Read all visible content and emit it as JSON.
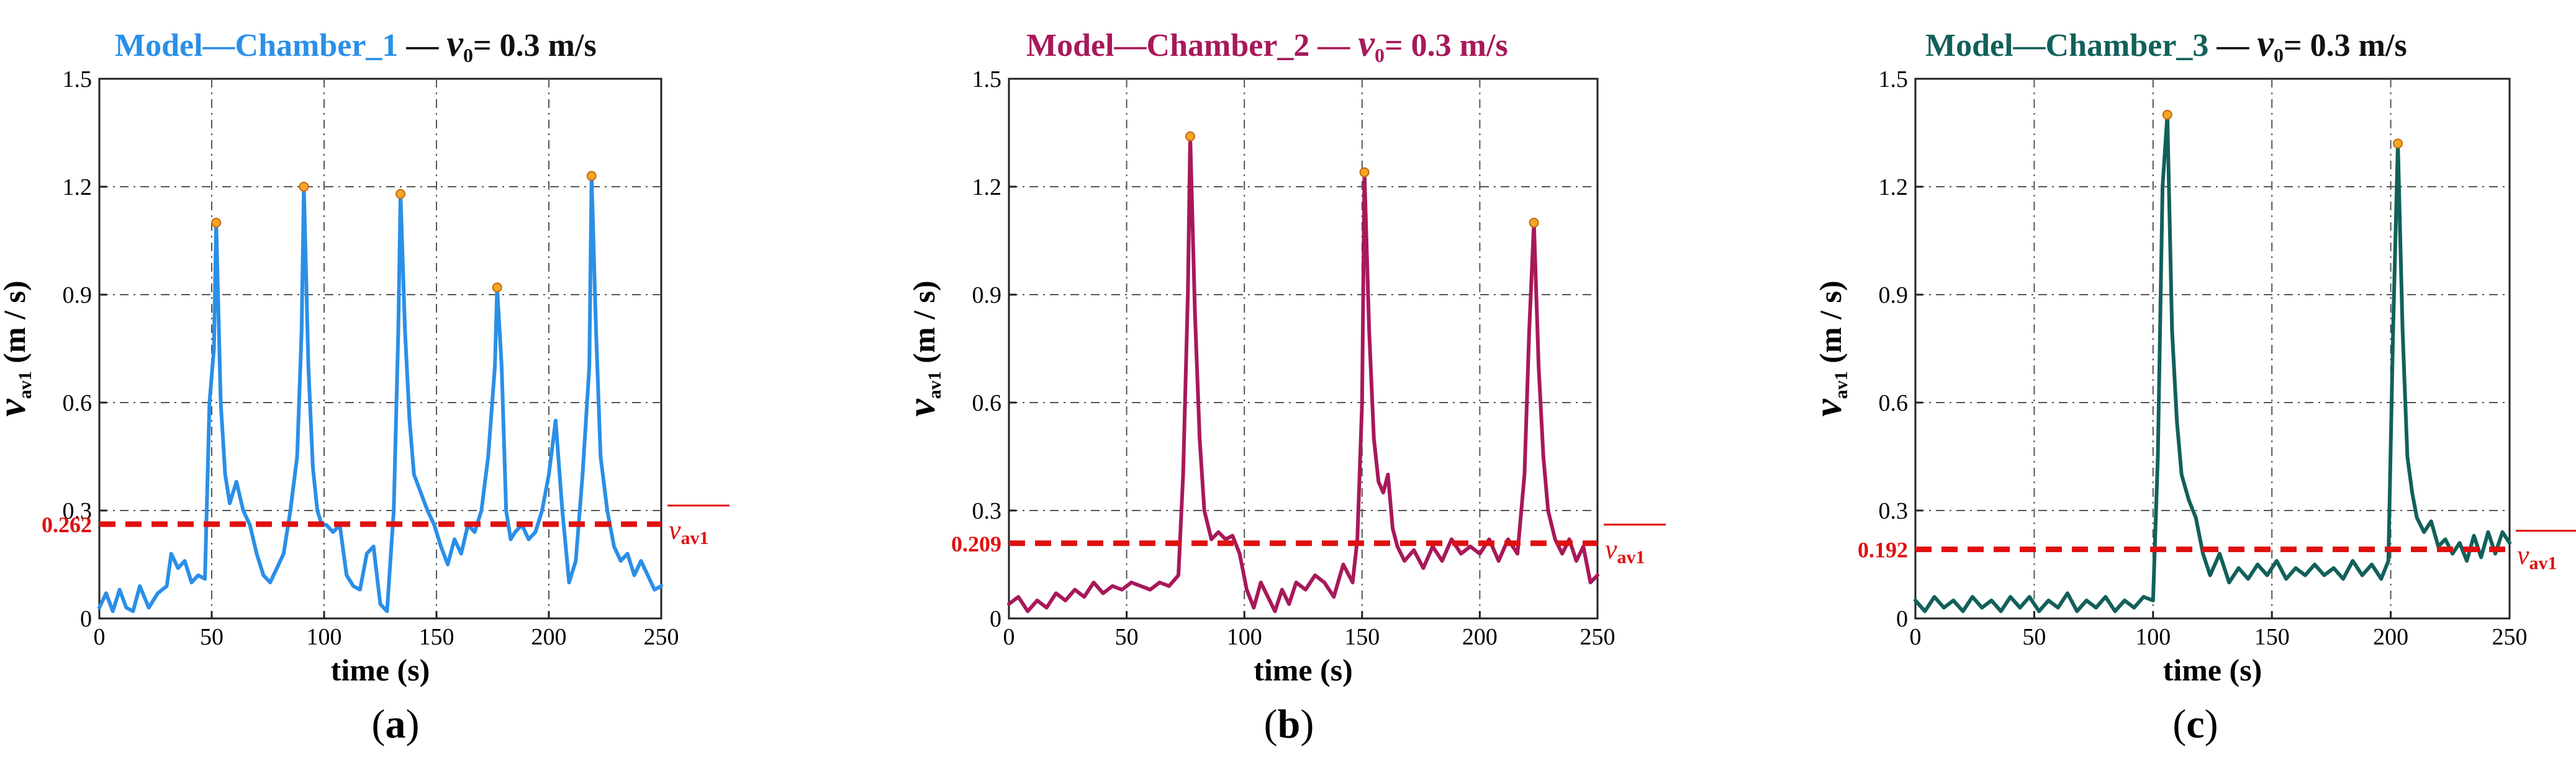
{
  "chart_data": [
    {
      "type": "line",
      "panel_label": "a",
      "title_model": "Model—Chamber_1",
      "title_sep": "—",
      "title_v": "v",
      "title_sub": "0",
      "title_value": "= 0.3 m/s",
      "color": "#2a8fe8",
      "xlabel": "time (s)",
      "ylabel": "v",
      "ylabel_sub": "av1",
      "ylabel_unit": "(m / s)",
      "xlim": [
        0,
        250
      ],
      "ylim": [
        0,
        1.5
      ],
      "x_ticks": [
        "0",
        "50",
        "100",
        "150",
        "200",
        "250"
      ],
      "y_ticks": [
        "0",
        "0.3",
        "0.6",
        "0.9",
        "1.2",
        "1.5"
      ],
      "average_value": "0.262",
      "average": 0.262,
      "average_label": "v",
      "average_label_sub": "av1",
      "peaks": [
        [
          52,
          1.1
        ],
        [
          91,
          1.2
        ],
        [
          134,
          1.18
        ],
        [
          177,
          0.92
        ],
        [
          219,
          1.23
        ]
      ],
      "x": [
        0,
        3,
        6,
        9,
        12,
        15,
        18,
        22,
        26,
        30,
        32,
        35,
        38,
        41,
        44,
        47,
        49,
        51,
        52,
        54,
        56,
        58,
        61,
        64,
        67,
        70,
        73,
        76,
        79,
        82,
        85,
        88,
        90,
        91,
        93,
        95,
        97,
        99,
        101,
        104,
        107,
        110,
        113,
        116,
        119,
        122,
        125,
        128,
        131,
        133,
        134,
        136,
        138,
        140,
        143,
        146,
        149,
        152,
        155,
        158,
        161,
        164,
        167,
        170,
        173,
        176,
        177,
        179,
        181,
        183,
        185,
        188,
        191,
        194,
        197,
        200,
        203,
        206,
        209,
        212,
        215,
        218,
        219,
        221,
        223,
        226,
        229,
        232,
        235,
        238,
        241,
        244,
        247,
        250
      ],
      "y": [
        0.03,
        0.07,
        0.02,
        0.08,
        0.03,
        0.02,
        0.09,
        0.03,
        0.07,
        0.09,
        0.18,
        0.14,
        0.16,
        0.1,
        0.12,
        0.11,
        0.6,
        0.75,
        1.1,
        0.6,
        0.4,
        0.32,
        0.38,
        0.3,
        0.26,
        0.18,
        0.12,
        0.1,
        0.14,
        0.18,
        0.3,
        0.45,
        0.8,
        1.2,
        0.7,
        0.42,
        0.3,
        0.26,
        0.26,
        0.24,
        0.26,
        0.12,
        0.09,
        0.08,
        0.18,
        0.2,
        0.04,
        0.02,
        0.3,
        0.8,
        1.18,
        0.8,
        0.55,
        0.4,
        0.35,
        0.3,
        0.26,
        0.2,
        0.15,
        0.22,
        0.18,
        0.26,
        0.24,
        0.3,
        0.45,
        0.7,
        0.92,
        0.7,
        0.3,
        0.22,
        0.24,
        0.26,
        0.22,
        0.24,
        0.3,
        0.4,
        0.55,
        0.3,
        0.1,
        0.16,
        0.4,
        0.7,
        1.23,
        0.8,
        0.45,
        0.3,
        0.2,
        0.16,
        0.18,
        0.12,
        0.16,
        0.12,
        0.08,
        0.09
      ]
    },
    {
      "type": "line",
      "panel_label": "b",
      "title_model": "Model—Chamber_2",
      "title_sep": "—",
      "title_v": "v",
      "title_sub": "0",
      "title_value": "= 0.3 m/s",
      "color": "#a8185a",
      "xlabel": "time (s)",
      "ylabel": "v",
      "ylabel_sub": "av1",
      "ylabel_unit": "(m / s)",
      "xlim": [
        0,
        250
      ],
      "ylim": [
        0,
        1.5
      ],
      "x_ticks": [
        "0",
        "50",
        "100",
        "150",
        "200",
        "250"
      ],
      "y_ticks": [
        "0",
        "0.3",
        "0.6",
        "0.9",
        "1.2",
        "1.5"
      ],
      "average_value": "0.209",
      "average": 0.209,
      "average_label": "v",
      "average_label_sub": "av1",
      "peaks": [
        [
          77,
          1.34
        ],
        [
          151,
          1.24
        ],
        [
          223,
          1.1
        ]
      ],
      "x": [
        0,
        4,
        8,
        12,
        16,
        20,
        24,
        28,
        32,
        36,
        40,
        44,
        48,
        52,
        56,
        60,
        64,
        68,
        72,
        74,
        76,
        77,
        79,
        81,
        83,
        86,
        89,
        92,
        95,
        98,
        101,
        104,
        107,
        110,
        113,
        116,
        119,
        122,
        126,
        130,
        134,
        138,
        142,
        146,
        148,
        150,
        151,
        153,
        155,
        157,
        159,
        161,
        163,
        165,
        168,
        172,
        176,
        180,
        184,
        188,
        192,
        196,
        200,
        204,
        208,
        212,
        216,
        219,
        221,
        223,
        225,
        227,
        229,
        232,
        235,
        238,
        241,
        244,
        247,
        250
      ],
      "y": [
        0.04,
        0.06,
        0.02,
        0.05,
        0.03,
        0.07,
        0.05,
        0.08,
        0.06,
        0.1,
        0.07,
        0.09,
        0.08,
        0.1,
        0.09,
        0.08,
        0.1,
        0.09,
        0.12,
        0.4,
        0.9,
        1.34,
        0.85,
        0.5,
        0.3,
        0.22,
        0.24,
        0.22,
        0.23,
        0.18,
        0.08,
        0.03,
        0.1,
        0.06,
        0.02,
        0.08,
        0.04,
        0.1,
        0.08,
        0.12,
        0.1,
        0.06,
        0.15,
        0.1,
        0.22,
        0.6,
        1.24,
        0.8,
        0.5,
        0.38,
        0.35,
        0.4,
        0.25,
        0.2,
        0.16,
        0.19,
        0.14,
        0.2,
        0.16,
        0.22,
        0.18,
        0.2,
        0.18,
        0.22,
        0.16,
        0.22,
        0.18,
        0.4,
        0.8,
        1.1,
        0.7,
        0.45,
        0.3,
        0.22,
        0.18,
        0.22,
        0.16,
        0.2,
        0.1,
        0.12
      ]
    },
    {
      "type": "line",
      "panel_label": "c",
      "title_model": "Model—Chamber_3",
      "title_sep": "—",
      "title_v": "v",
      "title_sub": "0",
      "title_value": "= 0.3 m/s",
      "color": "#12605a",
      "xlabel": "time (s)",
      "ylabel": "v",
      "ylabel_sub": "av1",
      "ylabel_unit": "(m / s)",
      "xlim": [
        0,
        250
      ],
      "ylim": [
        0,
        1.5
      ],
      "x_ticks": [
        "0",
        "50",
        "100",
        "150",
        "200",
        "250"
      ],
      "y_ticks": [
        "0",
        "0.3",
        "0.6",
        "0.9",
        "1.2",
        "1.5"
      ],
      "average_value": "0.192",
      "average": 0.192,
      "average_label": "v",
      "average_label_sub": "av1",
      "peaks": [
        [
          106,
          1.4
        ],
        [
          203,
          1.32
        ]
      ],
      "x": [
        0,
        4,
        8,
        12,
        16,
        20,
        24,
        28,
        32,
        36,
        40,
        44,
        48,
        52,
        56,
        60,
        64,
        68,
        72,
        76,
        80,
        84,
        88,
        92,
        96,
        100,
        102,
        104,
        106,
        108,
        110,
        112,
        115,
        118,
        121,
        124,
        128,
        132,
        136,
        140,
        144,
        148,
        152,
        156,
        160,
        164,
        168,
        172,
        176,
        180,
        184,
        188,
        192,
        196,
        199,
        201,
        203,
        205,
        207,
        209,
        211,
        214,
        217,
        220,
        223,
        226,
        229,
        232,
        235,
        238,
        241,
        244,
        247,
        250
      ],
      "y": [
        0.05,
        0.02,
        0.06,
        0.03,
        0.05,
        0.02,
        0.06,
        0.03,
        0.05,
        0.02,
        0.06,
        0.03,
        0.06,
        0.02,
        0.05,
        0.03,
        0.07,
        0.02,
        0.05,
        0.03,
        0.06,
        0.02,
        0.05,
        0.03,
        0.06,
        0.05,
        0.45,
        1.2,
        1.4,
        0.8,
        0.55,
        0.4,
        0.33,
        0.28,
        0.18,
        0.12,
        0.18,
        0.1,
        0.14,
        0.11,
        0.15,
        0.12,
        0.16,
        0.11,
        0.14,
        0.12,
        0.15,
        0.12,
        0.14,
        0.11,
        0.16,
        0.12,
        0.15,
        0.11,
        0.16,
        0.8,
        1.32,
        0.8,
        0.45,
        0.35,
        0.28,
        0.24,
        0.27,
        0.2,
        0.22,
        0.18,
        0.21,
        0.16,
        0.23,
        0.17,
        0.24,
        0.18,
        0.24,
        0.21
      ]
    }
  ]
}
